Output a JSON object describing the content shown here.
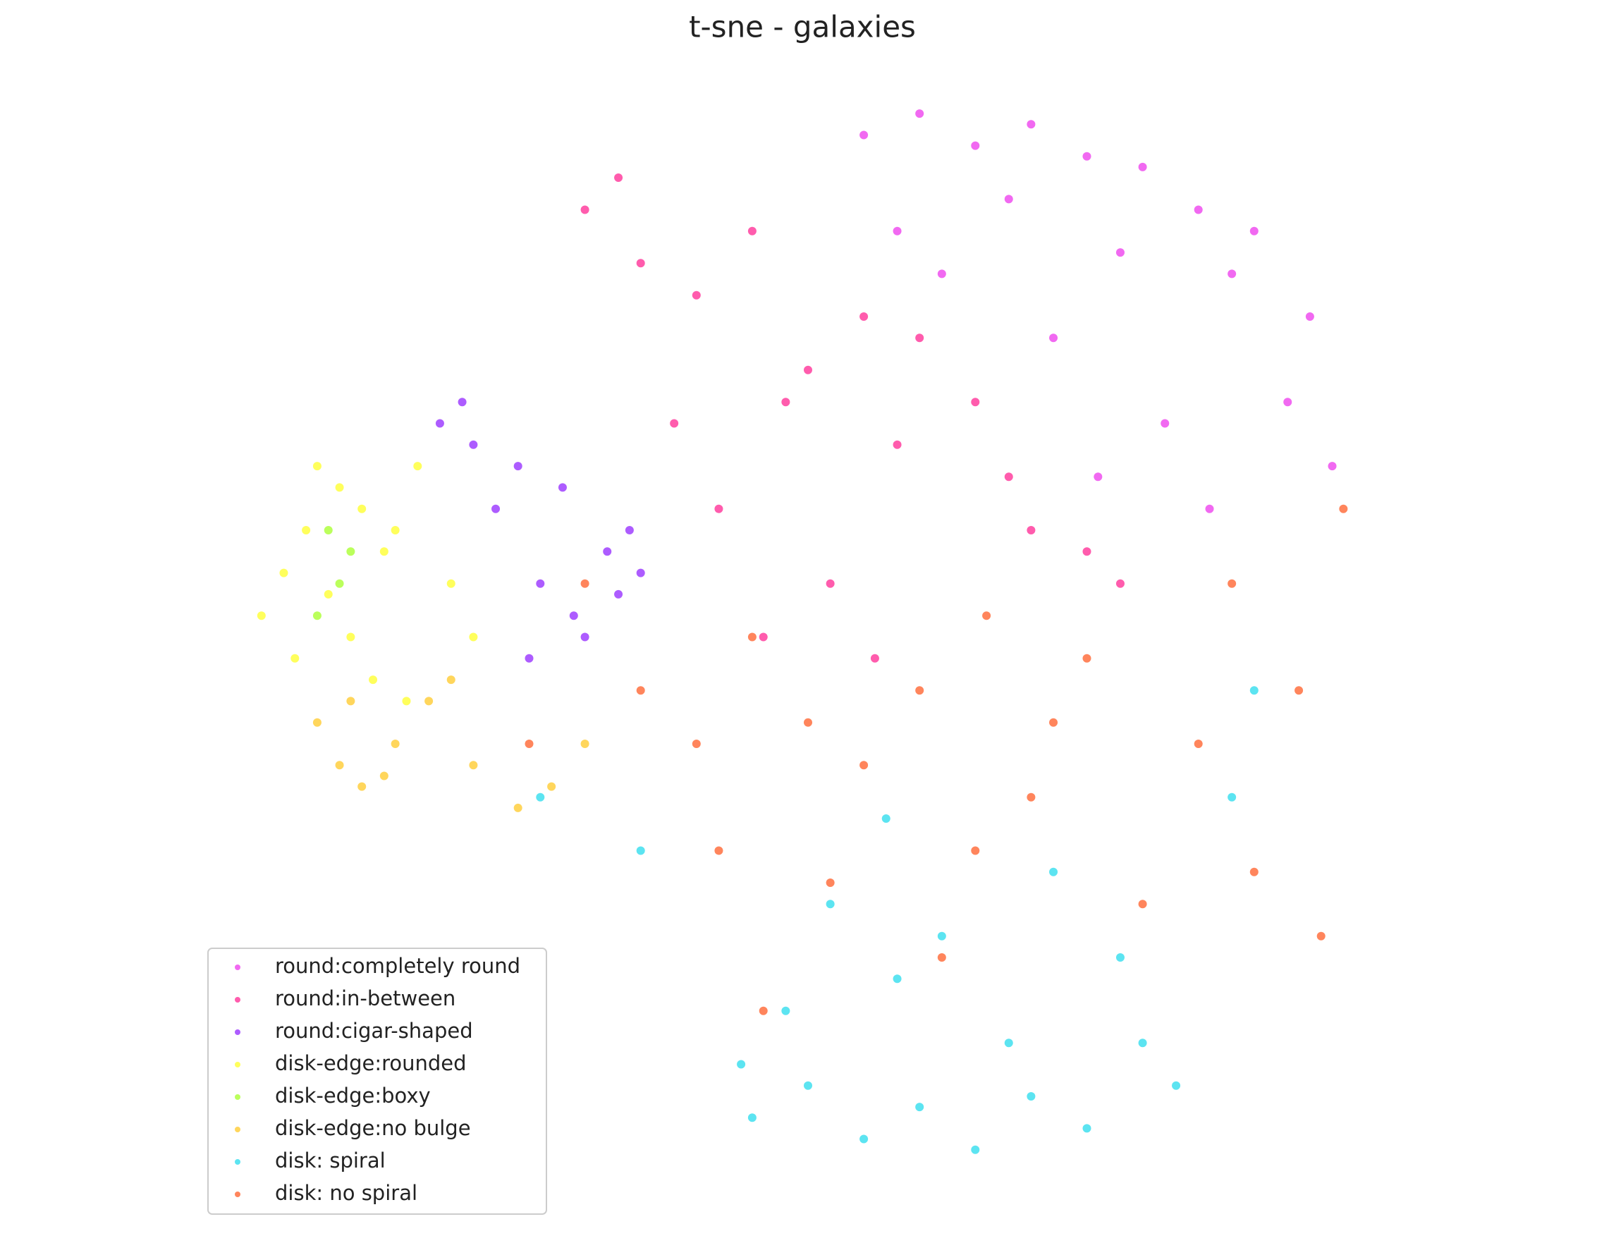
{
  "chart_data": {
    "type": "scatter",
    "title": "t-sne - galaxies",
    "xlim": [
      0,
      100
    ],
    "ylim": [
      0,
      100
    ],
    "grid": false,
    "legend": "lower left",
    "series": [
      {
        "name": "round:completely round",
        "color": "#ee44ee",
        "x": [
          55,
          60,
          65,
          70,
          75,
          80,
          85,
          90,
          95,
          58,
          68,
          78,
          88,
          93,
          72,
          82,
          62,
          97,
          86,
          76
        ],
        "values": [
          97,
          99,
          96,
          98,
          95,
          94,
          90,
          88,
          80,
          88,
          91,
          86,
          84,
          72,
          78,
          70,
          84,
          66,
          62,
          65
        ]
      },
      {
        "name": "round:in-between",
        "color": "#ff3399",
        "x": [
          30,
          35,
          40,
          45,
          50,
          55,
          38,
          48,
          58,
          65,
          70,
          42,
          52,
          60,
          68,
          75,
          33,
          46,
          56,
          78
        ],
        "values": [
          90,
          85,
          82,
          88,
          75,
          80,
          70,
          72,
          68,
          72,
          60,
          62,
          55,
          78,
          65,
          58,
          93,
          50,
          48,
          55
        ]
      },
      {
        "name": "round:cigar-shaped",
        "color": "#9933ff",
        "x": [
          17,
          20,
          24,
          28,
          32,
          35,
          22,
          26,
          30,
          34,
          19,
          25,
          29,
          33
        ],
        "values": [
          70,
          68,
          66,
          64,
          58,
          56,
          62,
          55,
          50,
          60,
          72,
          48,
          52,
          54
        ]
      },
      {
        "name": "disk-edge:rounded",
        "color": "#ffff33",
        "x": [
          1,
          3,
          5,
          8,
          10,
          12,
          15,
          18,
          20,
          4,
          7,
          11,
          14,
          6,
          9,
          13
        ],
        "values": [
          52,
          56,
          60,
          64,
          62,
          58,
          66,
          55,
          50,
          48,
          54,
          46,
          44,
          66,
          50,
          60
        ]
      },
      {
        "name": "disk-edge:boxy",
        "color": "#aaff33",
        "x": [
          7,
          8,
          6,
          9
        ],
        "values": [
          60,
          55,
          52,
          58
        ]
      },
      {
        "name": "disk-edge:no bulge",
        "color": "#ffcc33",
        "x": [
          6,
          8,
          10,
          13,
          16,
          20,
          24,
          27,
          30,
          9,
          18,
          12
        ],
        "values": [
          42,
          38,
          36,
          40,
          44,
          38,
          34,
          36,
          40,
          44,
          46,
          37
        ]
      },
      {
        "name": "disk: spiral",
        "color": "#33ddee",
        "x": [
          45,
          50,
          55,
          60,
          65,
          70,
          75,
          80,
          83,
          48,
          58,
          68,
          78,
          52,
          62,
          72,
          44,
          88,
          35,
          26,
          90,
          57
        ],
        "values": [
          5,
          8,
          3,
          6,
          2,
          7,
          4,
          12,
          8,
          15,
          18,
          12,
          20,
          25,
          22,
          28,
          10,
          35,
          30,
          35,
          45,
          33
        ]
      },
      {
        "name": "disk: no spiral",
        "color": "#ff6633",
        "x": [
          30,
          35,
          40,
          45,
          50,
          55,
          60,
          65,
          70,
          75,
          80,
          85,
          90,
          96,
          98,
          25,
          42,
          52,
          62,
          72,
          88,
          94,
          46,
          66
        ],
        "values": [
          55,
          45,
          40,
          50,
          42,
          38,
          45,
          30,
          35,
          48,
          25,
          40,
          28,
          22,
          62,
          40,
          30,
          27,
          20,
          42,
          55,
          45,
          15,
          52
        ]
      }
    ]
  }
}
